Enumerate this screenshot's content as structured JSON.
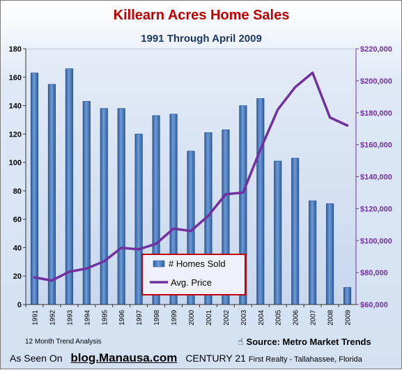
{
  "chart_data": {
    "type": "bar",
    "title": "Killearn Acres Home Sales",
    "subtitle": "1991 Through April 2009",
    "categories": [
      "1991",
      "1992",
      "1993",
      "1994",
      "1995",
      "1996",
      "1997",
      "1998",
      "1999",
      "2000",
      "2001",
      "2002",
      "2003",
      "2004",
      "2005",
      "2006",
      "2007",
      "2008",
      "2009"
    ],
    "series": [
      {
        "name": "# Homes Sold",
        "type": "bar",
        "axis": "left",
        "color": "#3a6fb8",
        "values": [
          163,
          155,
          166,
          143,
          138,
          138,
          120,
          133,
          134,
          108,
          121,
          123,
          140,
          145,
          101,
          103,
          73,
          71,
          12
        ]
      },
      {
        "name": "Avg. Price",
        "type": "line",
        "axis": "right",
        "color": "#7030a0",
        "values": [
          77000,
          75000,
          80500,
          82500,
          87000,
          95500,
          94500,
          98000,
          107500,
          106000,
          115500,
          129000,
          130000,
          157000,
          182000,
          196000,
          205000,
          177000,
          172000
        ]
      }
    ],
    "y_left": {
      "range": [
        0,
        180
      ],
      "ticks": [
        "0",
        "20",
        "40",
        "60",
        "80",
        "100",
        "120",
        "140",
        "160",
        "180"
      ],
      "color": "#000000"
    },
    "y_right": {
      "range": [
        60000,
        220000
      ],
      "ticks": [
        "$60,000",
        "$80,000",
        "$100,000",
        "$120,000",
        "$140,000",
        "$160,000",
        "$180,000",
        "$200,000",
        "$220,000"
      ],
      "color": "#7030a0"
    },
    "grid": false,
    "legend": "center-bottom"
  },
  "colors": {
    "title": "#c00000",
    "subtitle": "#1f3864",
    "bar": "#3a6fb8",
    "line": "#7030a0",
    "legend_border": "#c00000"
  },
  "footer": {
    "trend_note": "12 Month Trend Analysis",
    "source": "Source: Metro Market Trends",
    "as_seen_on": "As Seen On",
    "blog": "blog.Manausa.com",
    "century_brand": "CENTURY 21",
    "realty": "First Realty - Tallahassee, Florida",
    "hand_icon": "pointing-hand-icon"
  }
}
